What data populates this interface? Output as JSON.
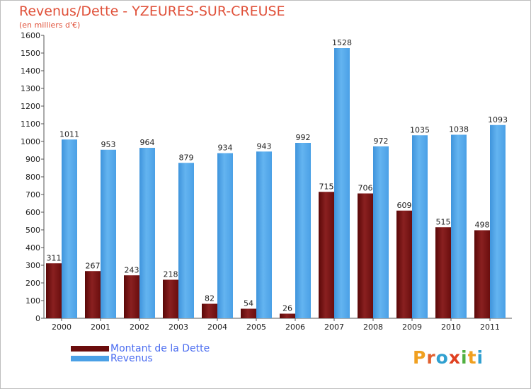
{
  "title": "Revenus/Dette - YZEURES-SUR-CREUSE",
  "subtitle": "(en milliers d'€)",
  "logo": {
    "letters": [
      "P",
      "r",
      "o",
      "x",
      "i",
      "t",
      "i"
    ]
  },
  "colors": {
    "dette": "#7a1414",
    "revenus": "#4a9be0",
    "title": "#e0513a",
    "legend_text": "#4a6cf0",
    "logo": [
      "#f0a020",
      "#e06030",
      "#30a0d0",
      "#e04020",
      "#50b040",
      "#f0a020",
      "#30a0d0"
    ]
  },
  "legend": [
    {
      "label": "Montant de la Dette",
      "color": "#6b0d0d"
    },
    {
      "label": "Revenus",
      "color": "#4aa0e6"
    }
  ],
  "chart_data": {
    "type": "bar",
    "title": "Revenus/Dette - YZEURES-SUR-CREUSE",
    "subtitle": "(en milliers d'€)",
    "xlabel": "",
    "ylabel": "",
    "ylim": [
      0,
      1600
    ],
    "yticks": [
      0,
      100,
      200,
      300,
      400,
      500,
      600,
      700,
      800,
      900,
      1000,
      1100,
      1200,
      1300,
      1400,
      1500,
      1600
    ],
    "grid": false,
    "legend_position": "bottom-left",
    "categories": [
      "2000",
      "2001",
      "2002",
      "2003",
      "2004",
      "2005",
      "2006",
      "2007",
      "2008",
      "2009",
      "2010",
      "2011"
    ],
    "series": [
      {
        "name": "Montant de la Dette",
        "values": [
          311,
          267,
          243,
          218,
          82,
          54,
          26,
          715,
          706,
          609,
          515,
          498
        ]
      },
      {
        "name": "Revenus",
        "values": [
          1011,
          953,
          964,
          879,
          934,
          943,
          992,
          1528,
          972,
          1035,
          1038,
          1093
        ]
      }
    ]
  }
}
